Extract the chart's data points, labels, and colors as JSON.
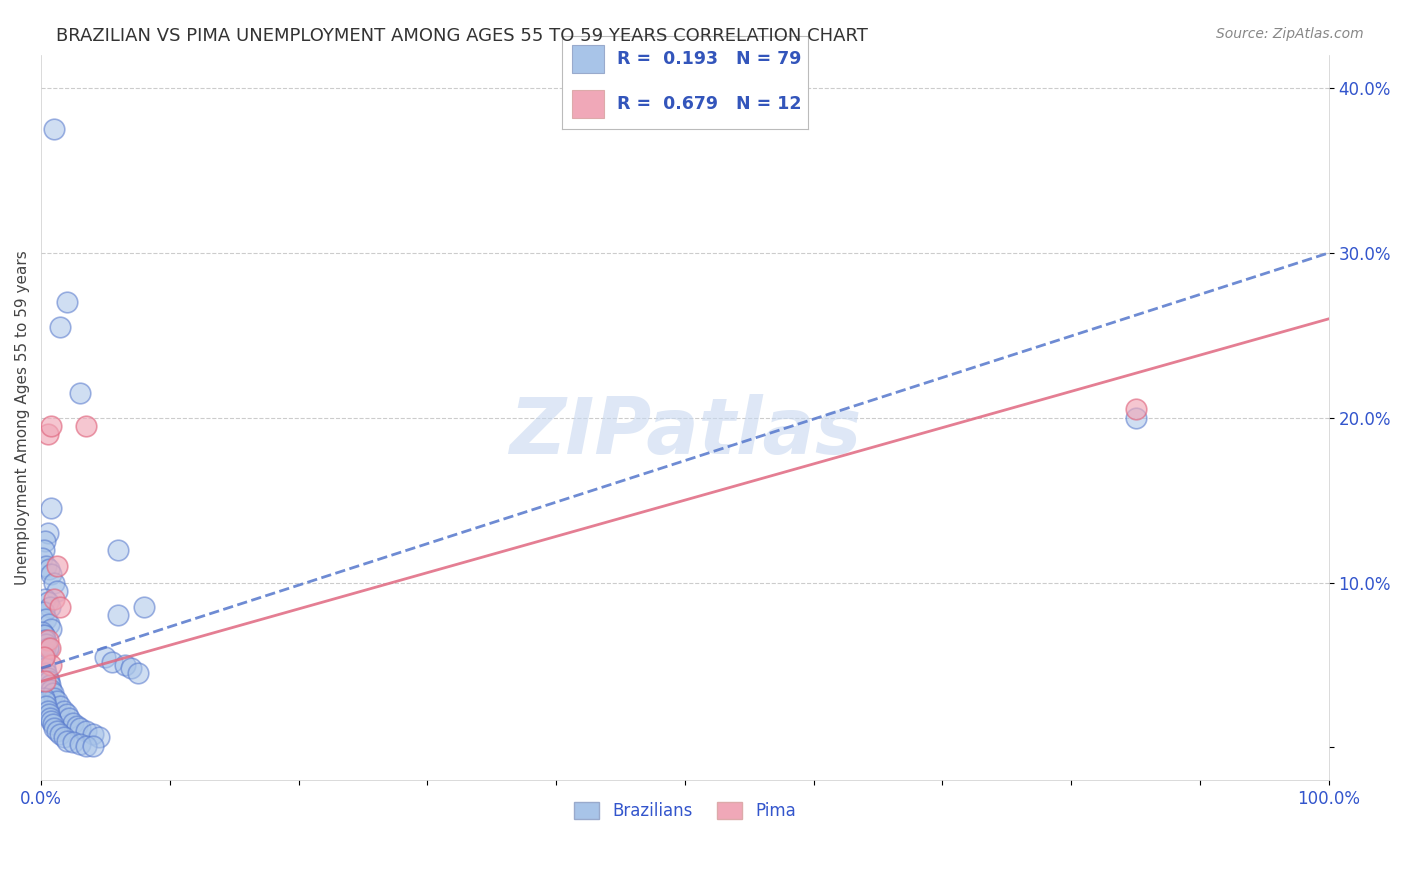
{
  "title": "BRAZILIAN VS PIMA UNEMPLOYMENT AMONG AGES 55 TO 59 YEARS CORRELATION CHART",
  "source": "Source: ZipAtlas.com",
  "ylabel": "Unemployment Among Ages 55 to 59 years",
  "xlim": [
    0,
    1.0
  ],
  "ylim": [
    -0.02,
    0.42
  ],
  "xticks": [
    0.0,
    0.1,
    0.2,
    0.3,
    0.4,
    0.5,
    0.6,
    0.7,
    0.8,
    0.9,
    1.0
  ],
  "xticklabels": [
    "0.0%",
    "",
    "",
    "",
    "",
    "",
    "",
    "",
    "",
    "",
    "100.0%"
  ],
  "yticks": [
    0.0,
    0.1,
    0.2,
    0.3,
    0.4
  ],
  "yticklabels": [
    "",
    "10.0%",
    "20.0%",
    "30.0%",
    "40.0%"
  ],
  "brazilian_R": 0.193,
  "brazilian_N": 79,
  "pima_R": 0.679,
  "pima_N": 12,
  "brazilian_color": "#a8c4e8",
  "pima_color": "#f0a8b8",
  "brazilian_line_color": "#5577cc",
  "pima_line_color": "#e06880",
  "grid_color": "#cccccc",
  "background_color": "#ffffff",
  "watermark": "ZIPatlas",
  "watermark_color": "#c8d8f0",
  "legend_label_brazilian": "Brazilians",
  "legend_label_pima": "Pima",
  "tick_color": "#3355cc",
  "brazilian_points_x": [
    0.01,
    0.02,
    0.015,
    0.03,
    0.008,
    0.005,
    0.003,
    0.002,
    0.001,
    0.004,
    0.006,
    0.008,
    0.01,
    0.012,
    0.003,
    0.005,
    0.007,
    0.002,
    0.004,
    0.006,
    0.008,
    0.002,
    0.003,
    0.004,
    0.005,
    0.003,
    0.002,
    0.001,
    0.002,
    0.003,
    0.004,
    0.005,
    0.006,
    0.007,
    0.008,
    0.009,
    0.01,
    0.012,
    0.015,
    0.018,
    0.02,
    0.022,
    0.025,
    0.028,
    0.03,
    0.035,
    0.04,
    0.045,
    0.05,
    0.055,
    0.06,
    0.065,
    0.07,
    0.075,
    0.002,
    0.003,
    0.004,
    0.005,
    0.006,
    0.007,
    0.008,
    0.009,
    0.01,
    0.012,
    0.015,
    0.018,
    0.02,
    0.025,
    0.03,
    0.035,
    0.04,
    0.001,
    0.002,
    0.003,
    0.004,
    0.005,
    0.06,
    0.08,
    0.85
  ],
  "brazilian_points_y": [
    0.375,
    0.27,
    0.255,
    0.215,
    0.145,
    0.13,
    0.125,
    0.12,
    0.115,
    0.11,
    0.108,
    0.105,
    0.1,
    0.095,
    0.09,
    0.088,
    0.085,
    0.082,
    0.078,
    0.075,
    0.072,
    0.068,
    0.065,
    0.062,
    0.06,
    0.058,
    0.055,
    0.052,
    0.05,
    0.048,
    0.045,
    0.042,
    0.04,
    0.038,
    0.035,
    0.033,
    0.03,
    0.028,
    0.025,
    0.022,
    0.02,
    0.018,
    0.015,
    0.013,
    0.012,
    0.01,
    0.008,
    0.006,
    0.055,
    0.052,
    0.12,
    0.05,
    0.048,
    0.045,
    0.03,
    0.028,
    0.025,
    0.022,
    0.02,
    0.018,
    0.016,
    0.014,
    0.012,
    0.01,
    0.008,
    0.006,
    0.004,
    0.003,
    0.002,
    0.001,
    0.001,
    0.07,
    0.068,
    0.065,
    0.063,
    0.06,
    0.08,
    0.085,
    0.2
  ],
  "pima_points_x": [
    0.005,
    0.008,
    0.01,
    0.012,
    0.015,
    0.005,
    0.007,
    0.008,
    0.035,
    0.85,
    0.002,
    0.003
  ],
  "pima_points_y": [
    0.19,
    0.195,
    0.09,
    0.11,
    0.085,
    0.065,
    0.06,
    0.05,
    0.195,
    0.205,
    0.055,
    0.04
  ],
  "b_line_x0": 0.0,
  "b_line_y0": 0.048,
  "b_line_x1": 1.0,
  "b_line_y1": 0.3,
  "p_line_x0": 0.0,
  "p_line_y0": 0.04,
  "p_line_x1": 1.0,
  "p_line_y1": 0.26
}
